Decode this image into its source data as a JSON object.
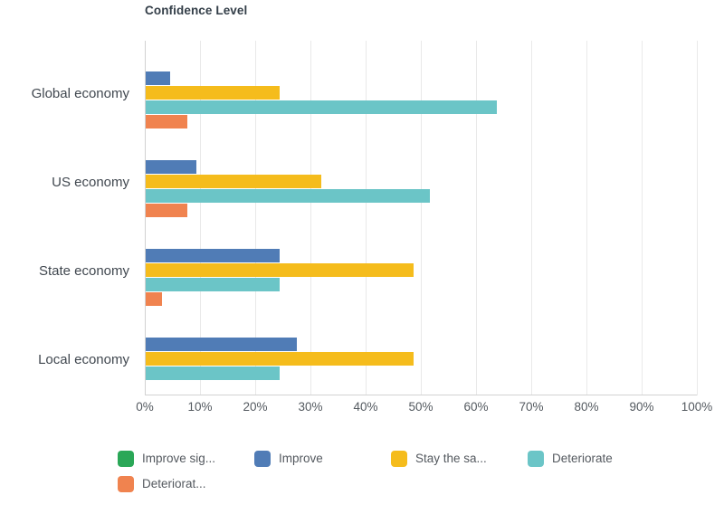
{
  "chart_data": {
    "type": "bar",
    "orientation": "horizontal",
    "title": "Confidence Level",
    "categories": [
      "Global economy",
      "US economy",
      "State economy",
      "Local economy"
    ],
    "series": [
      {
        "name": "Improve significantly",
        "legend_label": "Improve sig...",
        "color": "#2AA757",
        "values": [
          0,
          0,
          0,
          0
        ]
      },
      {
        "name": "Improve",
        "legend_label": "Improve",
        "color": "#507CB6",
        "values": [
          4.5,
          9.1,
          24.2,
          27.3
        ]
      },
      {
        "name": "Stay the same",
        "legend_label": "Stay the sa...",
        "color": "#F5BC1C",
        "values": [
          24.2,
          31.8,
          48.5,
          48.5
        ]
      },
      {
        "name": "Deteriorate",
        "legend_label": "Deteriorate",
        "color": "#6BC5C7",
        "values": [
          63.6,
          51.5,
          24.2,
          24.2
        ]
      },
      {
        "name": "Deteriorate significantly",
        "legend_label": "Deteriorat...",
        "color": "#F0834F",
        "values": [
          7.6,
          7.6,
          3.0,
          0
        ]
      }
    ],
    "x_ticks": [
      "0%",
      "10%",
      "20%",
      "30%",
      "40%",
      "50%",
      "60%",
      "70%",
      "80%",
      "90%",
      "100%"
    ],
    "xlim": [
      0,
      100
    ],
    "grid": true,
    "legend_position": "bottom"
  },
  "style_colors": {
    "title_text": "#333E48",
    "category_text": "#40474F",
    "tick_text": "#545A60",
    "legend_text": "#54595F",
    "gridline": "#E9E9E9",
    "axis_line": "#D2D2D2",
    "background": "#FFFFFF"
  }
}
